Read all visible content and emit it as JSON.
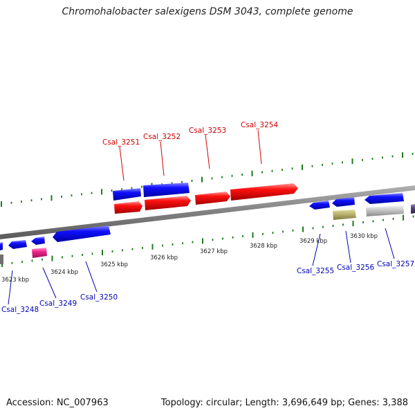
{
  "title": "Chromohalobacter salexigens DSM 3043, complete genome",
  "footer": {
    "accession": "Accession: NC_007963",
    "summary": "Topology: circular; Length: 3,696,649 bp; Genes: 3,388"
  },
  "colors": {
    "forward_label": "#cc0000",
    "reverse_label": "#0000b3",
    "backbone": "#808080",
    "tick": "#1a7a1a",
    "gene_blue": "#0000ee",
    "gene_red": "#ee0000",
    "gene_magenta": "#e0207f",
    "gene_olive": "#b8b26a",
    "gene_grey": "#c0c0c0",
    "gene_purple": "#55447a"
  },
  "scale_labels": [
    "3623 kbp",
    "3624 kbp",
    "3625 kbp",
    "3626 kbp",
    "3627 kbp",
    "3628 kbp",
    "3629 kbp",
    "3630 kbp"
  ],
  "forward_gene_labels": [
    "Csal_3251",
    "Csal_3252",
    "Csal_3253",
    "Csal_3254"
  ],
  "reverse_gene_labels": [
    "Csal_3248",
    "Csal_3249",
    "Csal_3250",
    "Csal_3255",
    "Csal_3256",
    "Csal_3257"
  ]
}
